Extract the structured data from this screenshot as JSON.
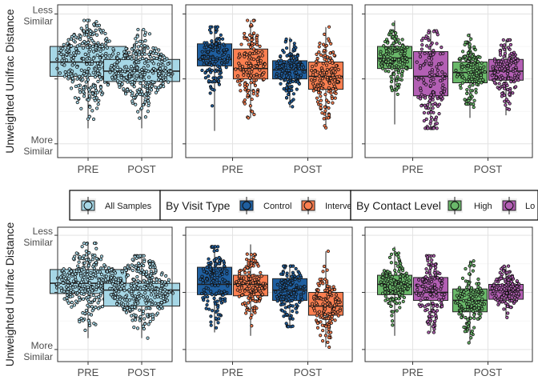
{
  "y_axis_label": "Unweighted Unifrac Distance",
  "y_tick_labels": {
    "top": [
      "Less",
      "Similar"
    ],
    "bottom": [
      "More",
      "Similar"
    ]
  },
  "colors": {
    "all": "#a6d7e6",
    "control": "#1f5fa0",
    "intervention": "#fc7f50",
    "high": "#6ab96a",
    "low": "#b35fb4"
  },
  "legend": {
    "groups": [
      {
        "title": "",
        "entries": [
          {
            "key": "all",
            "label": "All Samples"
          }
        ]
      },
      {
        "title": "By Visit Type",
        "entries": [
          {
            "key": "control",
            "label": "Control"
          },
          {
            "key": "intervention",
            "label": "Interve"
          }
        ]
      },
      {
        "title": "By Contact Level",
        "entries": [
          {
            "key": "high",
            "label": "High"
          },
          {
            "key": "low",
            "label": "Lo"
          }
        ]
      }
    ]
  },
  "chart_data": [
    {
      "type": "boxplot",
      "row": 1,
      "panel": 1,
      "categories": [
        "PRE",
        "POST"
      ],
      "ylim": [
        0,
        1
      ],
      "groups": [
        {
          "category": "PRE",
          "series": "all",
          "q1": 0.52,
          "median": 0.63,
          "q3": 0.75,
          "min": 0.12,
          "max": 0.95
        },
        {
          "category": "POST",
          "series": "all",
          "q1": 0.48,
          "median": 0.56,
          "q3": 0.65,
          "min": 0.12,
          "max": 0.88
        }
      ]
    },
    {
      "type": "boxplot",
      "row": 1,
      "panel": 2,
      "categories": [
        "PRE",
        "POST"
      ],
      "ylim": [
        0,
        1
      ],
      "groups": [
        {
          "category": "PRE",
          "series": "control",
          "q1": 0.6,
          "median": 0.65,
          "q3": 0.77,
          "min": 0.1,
          "max": 0.9
        },
        {
          "category": "PRE",
          "series": "intervention",
          "q1": 0.5,
          "median": 0.58,
          "q3": 0.73,
          "min": 0.2,
          "max": 0.95
        },
        {
          "category": "POST",
          "series": "control",
          "q1": 0.5,
          "median": 0.57,
          "q3": 0.64,
          "min": 0.28,
          "max": 0.82
        },
        {
          "category": "POST",
          "series": "intervention",
          "q1": 0.42,
          "median": 0.52,
          "q3": 0.63,
          "min": 0.12,
          "max": 0.9
        }
      ]
    },
    {
      "type": "boxplot",
      "row": 1,
      "panel": 3,
      "categories": [
        "PRE",
        "POST"
      ],
      "ylim": [
        0,
        1
      ],
      "groups": [
        {
          "category": "PRE",
          "series": "high",
          "q1": 0.58,
          "median": 0.66,
          "q3": 0.75,
          "min": 0.15,
          "max": 0.95
        },
        {
          "category": "PRE",
          "series": "low",
          "q1": 0.37,
          "median": 0.52,
          "q3": 0.71,
          "min": 0.12,
          "max": 0.87
        },
        {
          "category": "POST",
          "series": "high",
          "q1": 0.47,
          "median": 0.55,
          "q3": 0.63,
          "min": 0.2,
          "max": 0.85
        },
        {
          "category": "POST",
          "series": "low",
          "q1": 0.49,
          "median": 0.56,
          "q3": 0.65,
          "min": 0.22,
          "max": 0.8
        }
      ]
    },
    {
      "type": "boxplot",
      "row": 2,
      "panel": 1,
      "categories": [
        "PRE",
        "POST"
      ],
      "ylim": [
        0,
        1
      ],
      "groups": [
        {
          "category": "PRE",
          "series": "all",
          "q1": 0.49,
          "median": 0.58,
          "q3": 0.7,
          "min": 0.1,
          "max": 0.93
        },
        {
          "category": "POST",
          "series": "all",
          "q1": 0.38,
          "median": 0.52,
          "q3": 0.58,
          "min": 0.1,
          "max": 0.82
        }
      ]
    },
    {
      "type": "boxplot",
      "row": 2,
      "panel": 2,
      "categories": [
        "PRE",
        "POST"
      ],
      "ylim": [
        0,
        1
      ],
      "groups": [
        {
          "category": "PRE",
          "series": "control",
          "q1": 0.48,
          "median": 0.57,
          "q3": 0.72,
          "min": 0.15,
          "max": 0.9
        },
        {
          "category": "PRE",
          "series": "intervention",
          "q1": 0.47,
          "median": 0.57,
          "q3": 0.65,
          "min": 0.12,
          "max": 0.92
        },
        {
          "category": "POST",
          "series": "control",
          "q1": 0.43,
          "median": 0.52,
          "q3": 0.62,
          "min": 0.2,
          "max": 0.73
        },
        {
          "category": "POST",
          "series": "intervention",
          "q1": 0.3,
          "median": 0.38,
          "q3": 0.5,
          "min": 0.02,
          "max": 0.86
        }
      ]
    },
    {
      "type": "boxplot",
      "row": 2,
      "panel": 3,
      "categories": [
        "PRE",
        "POST"
      ],
      "ylim": [
        0,
        1
      ],
      "groups": [
        {
          "category": "PRE",
          "series": "high",
          "q1": 0.48,
          "median": 0.57,
          "q3": 0.65,
          "min": 0.12,
          "max": 0.9
        },
        {
          "category": "PRE",
          "series": "low",
          "q1": 0.43,
          "median": 0.5,
          "q3": 0.63,
          "min": 0.15,
          "max": 0.82
        },
        {
          "category": "POST",
          "series": "high",
          "q1": 0.33,
          "median": 0.43,
          "q3": 0.53,
          "min": 0.05,
          "max": 0.78
        },
        {
          "category": "POST",
          "series": "low",
          "q1": 0.44,
          "median": 0.52,
          "q3": 0.57,
          "min": 0.28,
          "max": 0.73
        }
      ]
    }
  ]
}
